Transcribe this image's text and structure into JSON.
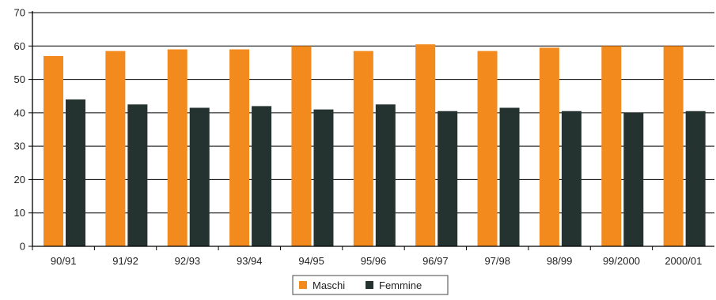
{
  "chart_data": {
    "type": "bar",
    "title": "",
    "xlabel": "",
    "ylabel": "",
    "ylim": [
      0,
      70
    ],
    "yticks": [
      0,
      10,
      20,
      30,
      40,
      50,
      60,
      70
    ],
    "categories": [
      "90/91",
      "91/92",
      "92/93",
      "93/94",
      "94/95",
      "95/96",
      "96/97",
      "97/98",
      "98/99",
      "99/2000",
      "2000/01"
    ],
    "series": [
      {
        "name": "Maschi",
        "color": "#F28A1E",
        "values": [
          57,
          58.5,
          59,
          59,
          60,
          58.5,
          60.5,
          58.5,
          59.5,
          60,
          60
        ]
      },
      {
        "name": "Femmine",
        "color": "#243330",
        "values": [
          44,
          42.5,
          41.5,
          42,
          41,
          42.5,
          40.5,
          41.5,
          40.5,
          40,
          40.5
        ]
      }
    ],
    "grid": true,
    "legend_position": "bottom-center"
  }
}
